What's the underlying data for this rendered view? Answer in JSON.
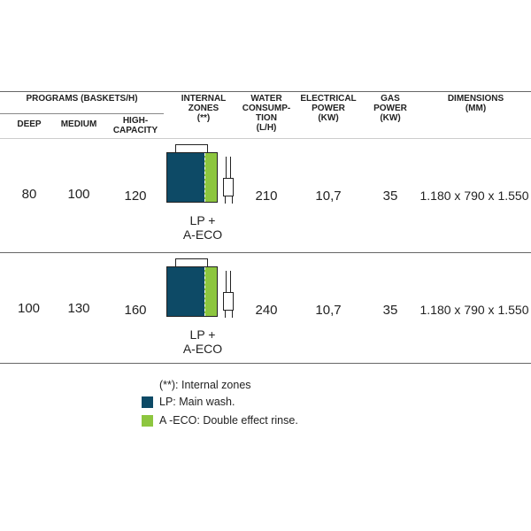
{
  "headers": {
    "programs": "PROGRAMS (BASKETS/H)",
    "deep": "DEEP",
    "medium": "MEDIUM",
    "high_capacity": "HIGH-\nCAPACITY",
    "internal_zones": "INTERNAL\nZONES\n(**)",
    "water": "WATER\nCONSUMP-\nTION\n(L/H)",
    "electrical": "ELECTRICAL\nPOWER\n(kW)",
    "gas": "GAS\nPOWER\n(kW)",
    "dimensions": "DIMENSIONS\n(mm)"
  },
  "rows": [
    {
      "deep": "80",
      "medium": "100",
      "high_capacity": "120",
      "zones": "LP +\nA-ECO",
      "water": "210",
      "electrical": "10,7",
      "gas": "35",
      "dimensions": "1.180 x 790 x 1.550"
    },
    {
      "deep": "100",
      "medium": "130",
      "high_capacity": "160",
      "zones": "LP +\nA-ECO",
      "water": "240",
      "electrical": "10,7",
      "gas": "35",
      "dimensions": "1.180 x 790 x 1.550"
    }
  ],
  "legend": {
    "note": "(**): Internal zones",
    "lp": "LP: Main wash.",
    "aeco": "A -ECO: Double effect rinse."
  },
  "colors": {
    "main_wash": "#0d4a66",
    "double_rinse": "#8dc63f"
  },
  "icons": [
    "dishwasher-zone-diagram-icon"
  ]
}
